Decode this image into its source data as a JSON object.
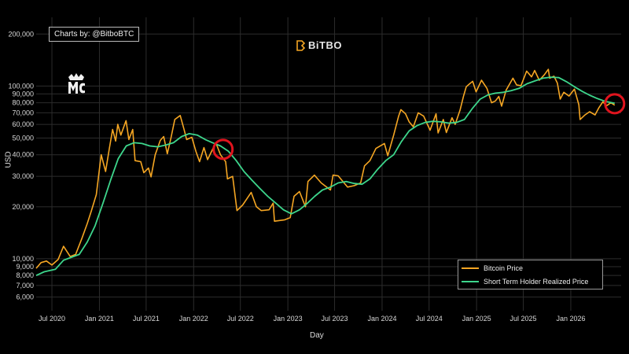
{
  "credit": "Charts by: @BitboBTC",
  "brand": "BiTBO",
  "legend": {
    "btc_label": "Bitcoin Price",
    "sth_label": "Short Term Holder Realized Price"
  },
  "chart_data": {
    "type": "line",
    "xlabel": "Day",
    "ylabel": "USD",
    "yscale": "log",
    "ylim": [
      5000,
      250000
    ],
    "xlim": [
      "2020-05-01",
      "2026-07-15"
    ],
    "x_ticks": [
      {
        "date": "2020-07-01",
        "label": "Jul 2020"
      },
      {
        "date": "2021-01-01",
        "label": "Jan 2021"
      },
      {
        "date": "2021-07-01",
        "label": "Jul 2021"
      },
      {
        "date": "2022-01-01",
        "label": "Jan 2022"
      },
      {
        "date": "2022-07-01",
        "label": "Jul 2022"
      },
      {
        "date": "2023-01-01",
        "label": "Jan 2023"
      },
      {
        "date": "2023-07-01",
        "label": "Jul 2023"
      },
      {
        "date": "2024-01-01",
        "label": "Jan 2024"
      },
      {
        "date": "2024-07-01",
        "label": "Jul 2024"
      },
      {
        "date": "2025-01-01",
        "label": "Jan 2025"
      },
      {
        "date": "2025-07-01",
        "label": "Jul 2025"
      },
      {
        "date": "2026-01-01",
        "label": "Jan 2026"
      }
    ],
    "y_ticks": [
      {
        "value": 6000,
        "label": "6,000"
      },
      {
        "value": 7000,
        "label": "7,000"
      },
      {
        "value": 8000,
        "label": "8,000"
      },
      {
        "value": 9000,
        "label": "9,000"
      },
      {
        "value": 10000,
        "label": "10,000"
      },
      {
        "value": 20000,
        "label": "20,000"
      },
      {
        "value": 30000,
        "label": "30,000"
      },
      {
        "value": 40000,
        "label": "40,000"
      },
      {
        "value": 50000,
        "label": "50,000"
      },
      {
        "value": 60000,
        "label": "60,000"
      },
      {
        "value": 70000,
        "label": "70,000"
      },
      {
        "value": 80000,
        "label": "80,000"
      },
      {
        "value": 90000,
        "label": "90,000"
      },
      {
        "value": 100000,
        "label": "100,000"
      },
      {
        "value": 200000,
        "label": "200,000"
      }
    ],
    "grid": true,
    "legend_position": "bottom-right",
    "series": [
      {
        "name": "Bitcoin Price",
        "color": "#f5a623",
        "points": [
          [
            "2020-05-01",
            8800
          ],
          [
            "2020-05-20",
            9500
          ],
          [
            "2020-06-10",
            9700
          ],
          [
            "2020-07-01",
            9200
          ],
          [
            "2020-07-25",
            9900
          ],
          [
            "2020-08-15",
            11800
          ],
          [
            "2020-09-10",
            10300
          ],
          [
            "2020-10-01",
            10600
          ],
          [
            "2020-10-25",
            13100
          ],
          [
            "2020-11-15",
            16000
          ],
          [
            "2020-12-01",
            19000
          ],
          [
            "2020-12-20",
            23500
          ],
          [
            "2021-01-08",
            40000
          ],
          [
            "2021-01-25",
            32000
          ],
          [
            "2021-02-08",
            43000
          ],
          [
            "2021-02-21",
            56000
          ],
          [
            "2021-03-05",
            48000
          ],
          [
            "2021-03-13",
            60000
          ],
          [
            "2021-03-25",
            52000
          ],
          [
            "2021-04-14",
            63000
          ],
          [
            "2021-04-25",
            49000
          ],
          [
            "2021-05-10",
            56000
          ],
          [
            "2021-05-19",
            37000
          ],
          [
            "2021-06-10",
            36500
          ],
          [
            "2021-06-22",
            31500
          ],
          [
            "2021-07-10",
            33500
          ],
          [
            "2021-07-20",
            29800
          ],
          [
            "2021-08-05",
            40000
          ],
          [
            "2021-08-25",
            48500
          ],
          [
            "2021-09-07",
            51000
          ],
          [
            "2021-09-21",
            40500
          ],
          [
            "2021-10-05",
            50000
          ],
          [
            "2021-10-20",
            64000
          ],
          [
            "2021-11-10",
            67500
          ],
          [
            "2021-11-25",
            56000
          ],
          [
            "2021-12-05",
            49000
          ],
          [
            "2021-12-25",
            50500
          ],
          [
            "2022-01-10",
            41800
          ],
          [
            "2022-01-24",
            36500
          ],
          [
            "2022-02-10",
            44000
          ],
          [
            "2022-02-24",
            37500
          ],
          [
            "2022-03-28",
            47000
          ],
          [
            "2022-04-15",
            40000
          ],
          [
            "2022-05-05",
            36500
          ],
          [
            "2022-05-12",
            29000
          ],
          [
            "2022-06-01",
            30000
          ],
          [
            "2022-06-18",
            19000
          ],
          [
            "2022-07-10",
            20500
          ],
          [
            "2022-08-12",
            24200
          ],
          [
            "2022-09-01",
            20000
          ],
          [
            "2022-09-20",
            19000
          ],
          [
            "2022-10-20",
            19200
          ],
          [
            "2022-11-05",
            21000
          ],
          [
            "2022-11-10",
            16500
          ],
          [
            "2022-12-20",
            16800
          ],
          [
            "2023-01-10",
            17300
          ],
          [
            "2023-01-25",
            23000
          ],
          [
            "2023-02-15",
            24500
          ],
          [
            "2023-03-10",
            20000
          ],
          [
            "2023-03-20",
            28000
          ],
          [
            "2023-04-14",
            30500
          ],
          [
            "2023-05-10",
            27500
          ],
          [
            "2023-06-15",
            25000
          ],
          [
            "2023-06-25",
            30500
          ],
          [
            "2023-07-15",
            30200
          ],
          [
            "2023-08-20",
            26000
          ],
          [
            "2023-09-15",
            26500
          ],
          [
            "2023-10-10",
            27500
          ],
          [
            "2023-10-25",
            34500
          ],
          [
            "2023-11-15",
            37000
          ],
          [
            "2023-12-08",
            43500
          ],
          [
            "2024-01-10",
            46500
          ],
          [
            "2024-01-23",
            39500
          ],
          [
            "2024-02-15",
            52000
          ],
          [
            "2024-03-05",
            67000
          ],
          [
            "2024-03-14",
            73000
          ],
          [
            "2024-04-01",
            69000
          ],
          [
            "2024-04-15",
            62000
          ],
          [
            "2024-05-01",
            58000
          ],
          [
            "2024-05-20",
            70000
          ],
          [
            "2024-06-10",
            67000
          ],
          [
            "2024-07-05",
            55500
          ],
          [
            "2024-07-28",
            69000
          ],
          [
            "2024-08-05",
            53500
          ],
          [
            "2024-08-25",
            64000
          ],
          [
            "2024-09-06",
            53800
          ],
          [
            "2024-09-28",
            65500
          ],
          [
            "2024-10-10",
            60000
          ],
          [
            "2024-10-29",
            72500
          ],
          [
            "2024-11-12",
            88000
          ],
          [
            "2024-11-22",
            99000
          ],
          [
            "2024-12-05",
            103000
          ],
          [
            "2024-12-17",
            106500
          ],
          [
            "2024-12-30",
            92500
          ],
          [
            "2025-01-20",
            108000
          ],
          [
            "2025-02-10",
            97000
          ],
          [
            "2025-02-28",
            80000
          ],
          [
            "2025-03-15",
            82000
          ],
          [
            "2025-03-28",
            87000
          ],
          [
            "2025-04-08",
            76500
          ],
          [
            "2025-04-25",
            94500
          ],
          [
            "2025-05-22",
            111000
          ],
          [
            "2025-06-05",
            101500
          ],
          [
            "2025-06-22",
            100500
          ],
          [
            "2025-07-14",
            122000
          ],
          [
            "2025-08-02",
            113000
          ],
          [
            "2025-08-14",
            123000
          ],
          [
            "2025-09-01",
            108000
          ],
          [
            "2025-09-20",
            116000
          ],
          [
            "2025-10-06",
            125000
          ],
          [
            "2025-10-11",
            111000
          ],
          [
            "2025-10-28",
            114000
          ],
          [
            "2025-11-10",
            104000
          ],
          [
            "2025-11-21",
            84000
          ],
          [
            "2025-12-05",
            92000
          ],
          [
            "2025-12-25",
            87500
          ],
          [
            "2026-01-15",
            96000
          ],
          [
            "2026-02-01",
            78000
          ],
          [
            "2026-02-06",
            64000
          ],
          [
            "2026-02-25",
            68000
          ],
          [
            "2026-03-15",
            71000
          ],
          [
            "2026-04-05",
            68000
          ],
          [
            "2026-04-20",
            75000
          ],
          [
            "2026-05-05",
            81000
          ],
          [
            "2026-05-20",
            77000
          ],
          [
            "2026-06-05",
            80000
          ],
          [
            "2026-06-20",
            77500
          ]
        ]
      },
      {
        "name": "Short Term Holder Realized Price",
        "color": "#3dd68c",
        "points": [
          [
            "2020-05-01",
            8000
          ],
          [
            "2020-06-01",
            8400
          ],
          [
            "2020-07-15",
            8700
          ],
          [
            "2020-08-15",
            9800
          ],
          [
            "2020-09-15",
            10200
          ],
          [
            "2020-10-15",
            10600
          ],
          [
            "2020-11-15",
            12500
          ],
          [
            "2020-12-15",
            15500
          ],
          [
            "2021-01-15",
            21000
          ],
          [
            "2021-02-15",
            29000
          ],
          [
            "2021-03-15",
            38000
          ],
          [
            "2021-04-15",
            45000
          ],
          [
            "2021-05-15",
            47000
          ],
          [
            "2021-06-15",
            46500
          ],
          [
            "2021-07-15",
            45000
          ],
          [
            "2021-08-15",
            44500
          ],
          [
            "2021-09-15",
            45500
          ],
          [
            "2021-10-15",
            47000
          ],
          [
            "2021-11-15",
            51000
          ],
          [
            "2021-12-15",
            53000
          ],
          [
            "2022-01-15",
            52000
          ],
          [
            "2022-02-15",
            49000
          ],
          [
            "2022-03-15",
            47000
          ],
          [
            "2022-04-15",
            45000
          ],
          [
            "2022-05-15",
            42000
          ],
          [
            "2022-06-15",
            37000
          ],
          [
            "2022-07-15",
            32000
          ],
          [
            "2022-08-15",
            28500
          ],
          [
            "2022-09-15",
            25500
          ],
          [
            "2022-10-15",
            23000
          ],
          [
            "2022-11-15",
            21000
          ],
          [
            "2022-12-15",
            19200
          ],
          [
            "2023-01-15",
            18200
          ],
          [
            "2023-02-15",
            19200
          ],
          [
            "2023-03-15",
            20800
          ],
          [
            "2023-04-15",
            23000
          ],
          [
            "2023-05-15",
            25000
          ],
          [
            "2023-06-15",
            26000
          ],
          [
            "2023-07-15",
            27500
          ],
          [
            "2023-08-15",
            28000
          ],
          [
            "2023-09-15",
            27300
          ],
          [
            "2023-10-15",
            27000
          ],
          [
            "2023-11-15",
            29000
          ],
          [
            "2023-12-15",
            33000
          ],
          [
            "2024-01-15",
            37000
          ],
          [
            "2024-02-15",
            40000
          ],
          [
            "2024-03-15",
            47500
          ],
          [
            "2024-04-15",
            55000
          ],
          [
            "2024-05-15",
            59000
          ],
          [
            "2024-06-15",
            61500
          ],
          [
            "2024-07-15",
            62500
          ],
          [
            "2024-08-15",
            62000
          ],
          [
            "2024-09-15",
            61000
          ],
          [
            "2024-10-15",
            61500
          ],
          [
            "2024-11-15",
            64000
          ],
          [
            "2024-12-15",
            74000
          ],
          [
            "2025-01-15",
            84000
          ],
          [
            "2025-02-15",
            89000
          ],
          [
            "2025-03-15",
            91000
          ],
          [
            "2025-04-15",
            92000
          ],
          [
            "2025-05-15",
            94000
          ],
          [
            "2025-06-15",
            97000
          ],
          [
            "2025-07-15",
            103000
          ],
          [
            "2025-08-15",
            107000
          ],
          [
            "2025-09-15",
            111000
          ],
          [
            "2025-10-15",
            112500
          ],
          [
            "2025-11-15",
            112000
          ],
          [
            "2025-12-15",
            106000
          ],
          [
            "2026-01-15",
            99000
          ],
          [
            "2026-02-15",
            93000
          ],
          [
            "2026-03-15",
            88500
          ],
          [
            "2026-04-15",
            84500
          ],
          [
            "2026-05-15",
            81500
          ],
          [
            "2026-06-20",
            79500
          ]
        ]
      }
    ],
    "annotations": [
      {
        "type": "circle",
        "date": "2022-04-25",
        "value": 43000,
        "color": "#e0141e"
      },
      {
        "type": "circle",
        "date": "2026-06-20",
        "value": 79000,
        "color": "#e0141e"
      }
    ]
  }
}
